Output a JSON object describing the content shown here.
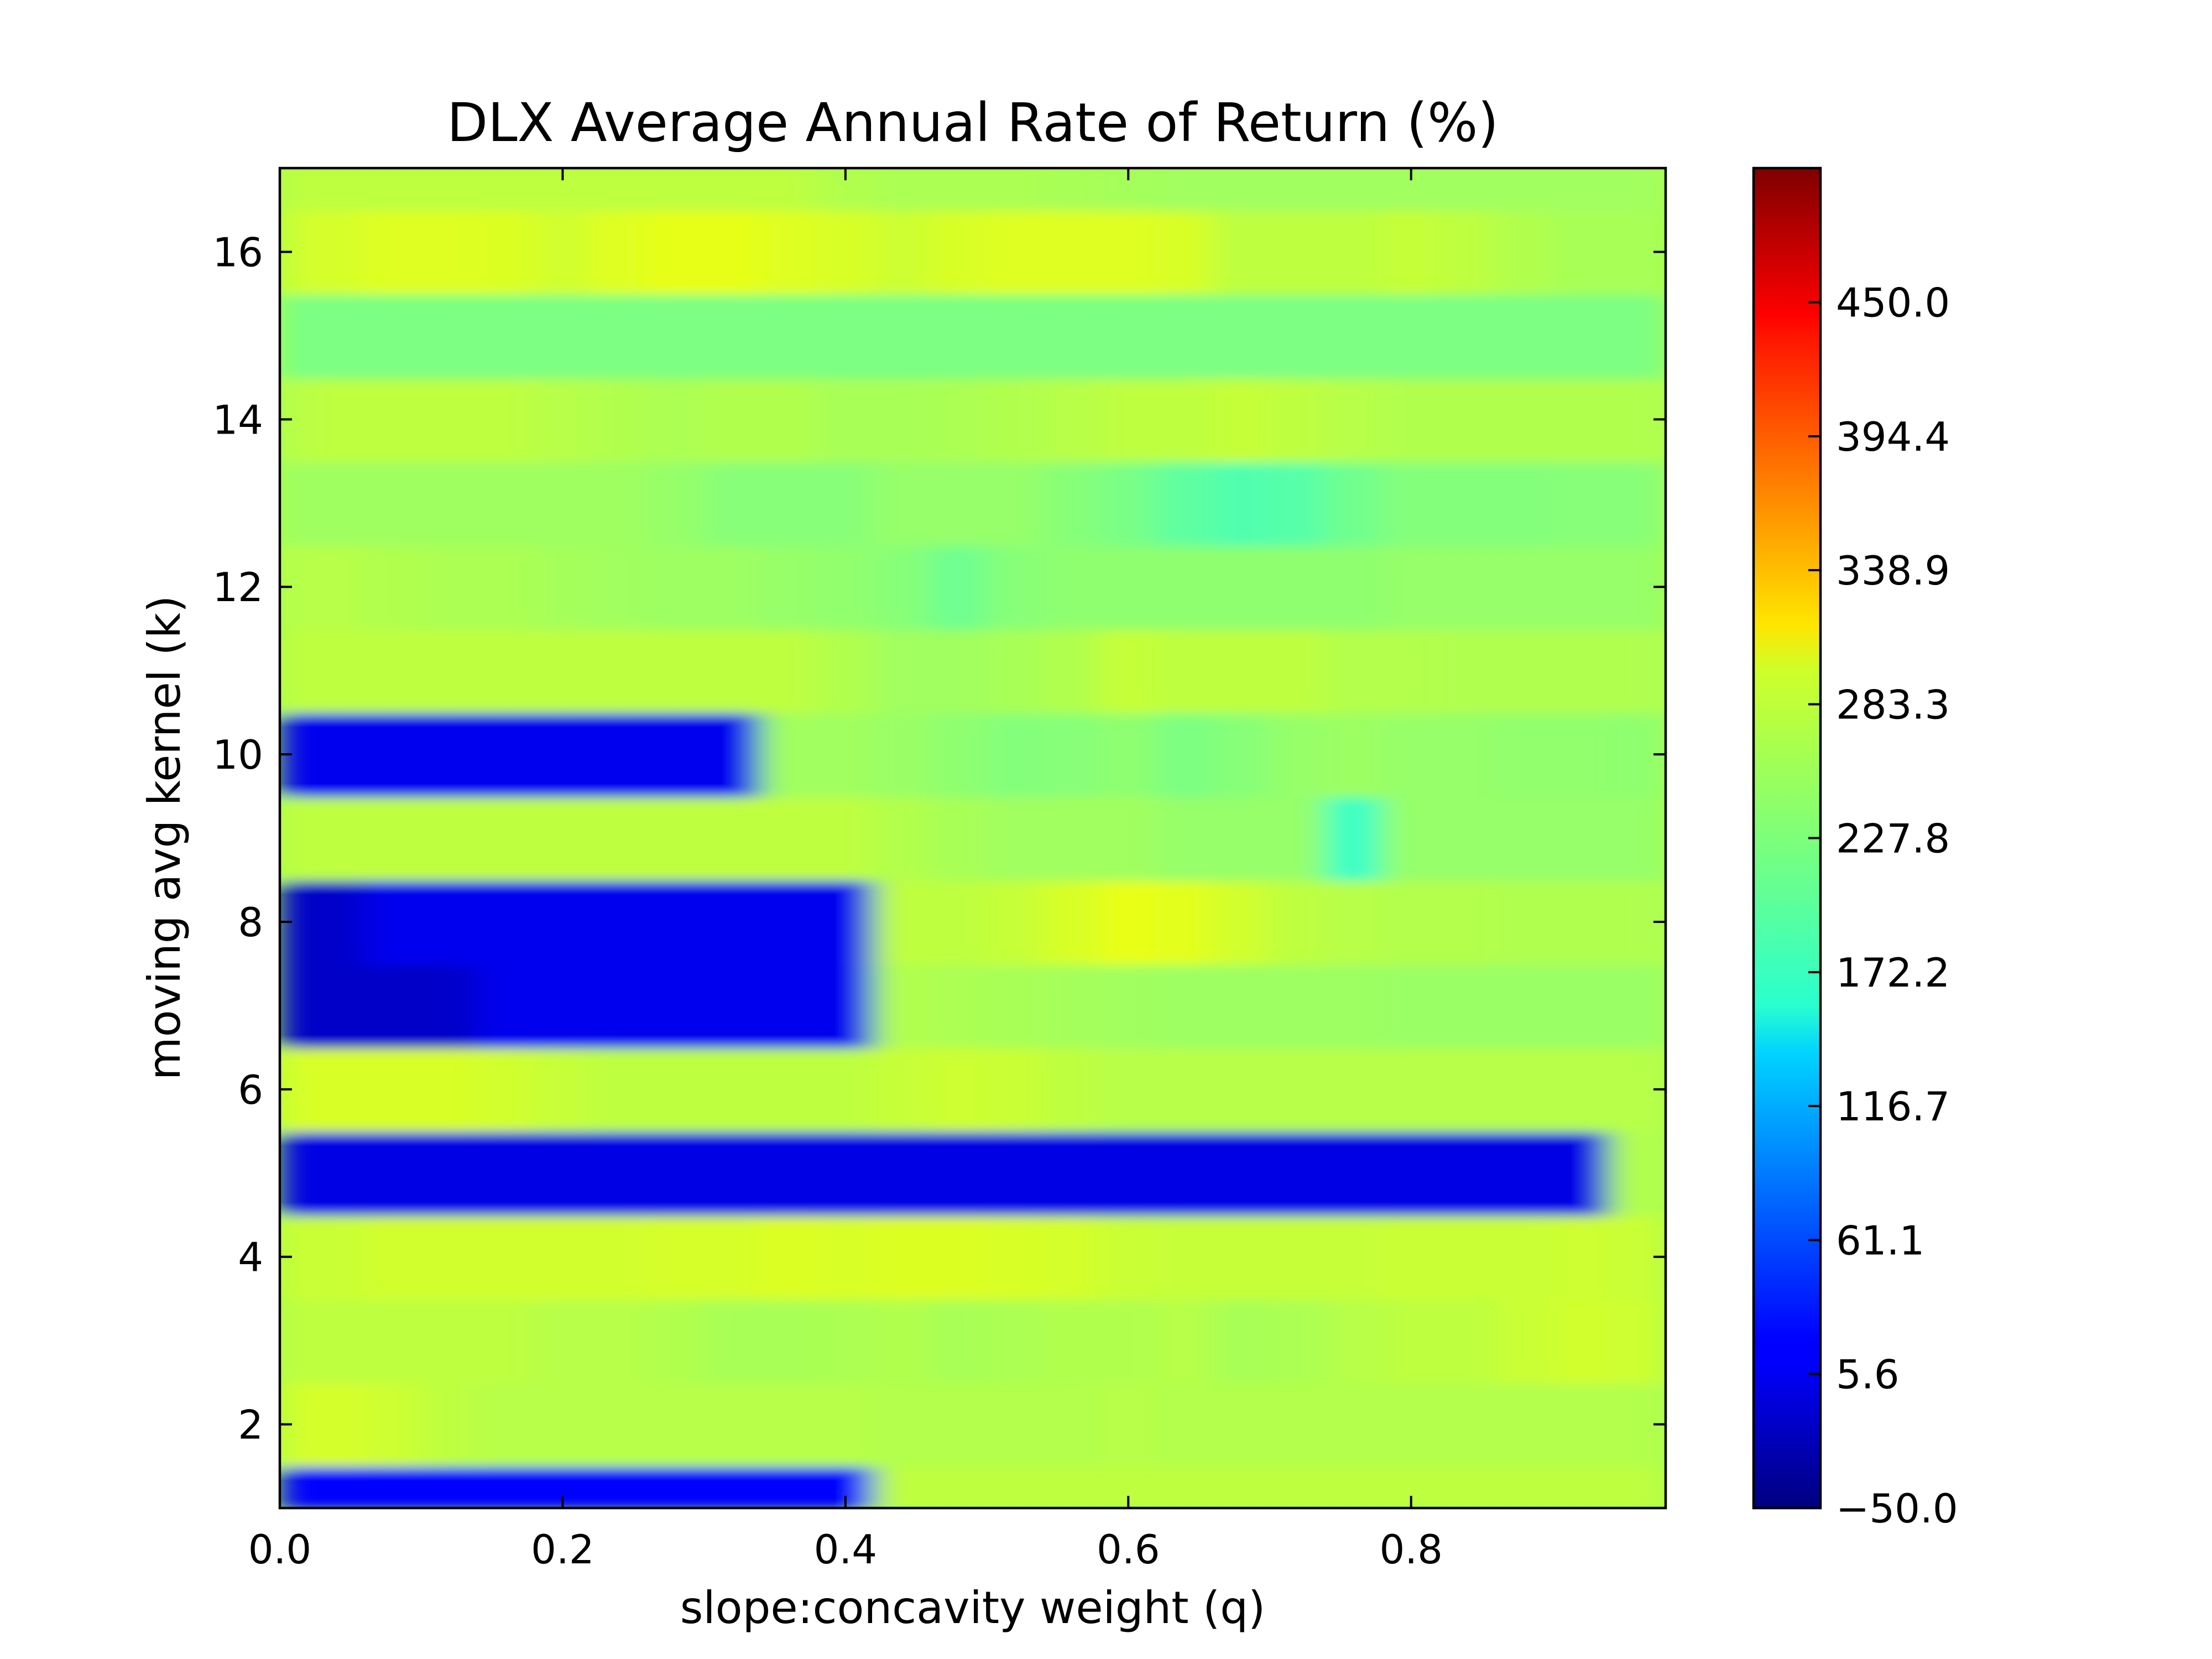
{
  "chart_data": {
    "type": "heatmap",
    "title": "DLX Average Annual Rate of Return (%)",
    "xlabel": "slope:concavity weight (q)",
    "ylabel": "moving avg kernel (k)",
    "xlim": [
      0.0,
      0.98
    ],
    "ylim": [
      1,
      17
    ],
    "x_ticks": [
      0.0,
      0.2,
      0.4,
      0.6,
      0.8
    ],
    "x_tick_labels": [
      "0.0",
      "0.2",
      "0.4",
      "0.6",
      "0.8"
    ],
    "y_ticks": [
      2,
      4,
      6,
      8,
      10,
      12,
      14,
      16
    ],
    "y_tick_labels": [
      "2",
      "4",
      "6",
      "8",
      "10",
      "12",
      "14",
      "16"
    ],
    "grid": false,
    "colormap": "jet",
    "colorbar": {
      "vmin": -50.0,
      "vmax": 505.6,
      "ticks": [
        -50.0,
        5.6,
        61.1,
        116.7,
        172.2,
        227.8,
        283.3,
        338.9,
        394.4,
        450.0
      ],
      "tick_labels": [
        "−50.0",
        "5.6",
        "61.1",
        "116.7",
        "172.2",
        "227.8",
        "283.3",
        "338.9",
        "394.4",
        "450.0"
      ]
    },
    "x": [
      0.0,
      0.04,
      0.08,
      0.12,
      0.16,
      0.2,
      0.24,
      0.28,
      0.32,
      0.36,
      0.4,
      0.44,
      0.48,
      0.52,
      0.56,
      0.6,
      0.64,
      0.68,
      0.72,
      0.76,
      0.8,
      0.84,
      0.88,
      0.92,
      0.96,
      0.98
    ],
    "y": [
      1,
      2,
      3,
      4,
      5,
      6,
      7,
      8,
      9,
      10,
      11,
      12,
      13,
      14,
      15,
      16,
      17
    ],
    "rows": [
      {
        "k": 1,
        "values": [
          20,
          20,
          20,
          20,
          20,
          20,
          20,
          20,
          20,
          20,
          20,
          262,
          262,
          262,
          262,
          262,
          262,
          262,
          262,
          262,
          262,
          262,
          262,
          262,
          262,
          262
        ]
      },
      {
        "k": 2,
        "values": [
          272,
          275,
          270,
          262,
          258,
          258,
          258,
          258,
          258,
          258,
          258,
          256,
          256,
          256,
          256,
          258,
          256,
          256,
          256,
          256,
          256,
          256,
          256,
          256,
          256,
          256
        ]
      },
      {
        "k": 3,
        "values": [
          262,
          262,
          262,
          262,
          262,
          258,
          258,
          255,
          250,
          250,
          252,
          255,
          250,
          252,
          255,
          255,
          258,
          250,
          252,
          258,
          262,
          262,
          268,
          272,
          270,
          270
        ]
      },
      {
        "k": 4,
        "values": [
          268,
          268,
          272,
          272,
          272,
          272,
          272,
          275,
          275,
          278,
          276,
          278,
          278,
          276,
          274,
          268,
          266,
          266,
          266,
          266,
          268,
          268,
          268,
          270,
          268,
          268
        ]
      },
      {
        "k": 5,
        "values": [
          5,
          5,
          5,
          5,
          5,
          5,
          5,
          5,
          5,
          5,
          5,
          5,
          5,
          5,
          5,
          5,
          5,
          5,
          5,
          5,
          5,
          5,
          5,
          5,
          255,
          255
        ]
      },
      {
        "k": 6,
        "values": [
          276,
          276,
          276,
          276,
          272,
          266,
          262,
          262,
          262,
          262,
          262,
          266,
          270,
          268,
          262,
          258,
          258,
          258,
          258,
          258,
          258,
          258,
          258,
          258,
          258,
          258
        ]
      },
      {
        "k": 7,
        "values": [
          -10,
          -10,
          -10,
          -10,
          10,
          10,
          10,
          10,
          10,
          10,
          10,
          255,
          252,
          250,
          248,
          246,
          244,
          244,
          244,
          244,
          242,
          242,
          242,
          242,
          242,
          242
        ]
      },
      {
        "k": 8,
        "values": [
          -10,
          -10,
          10,
          10,
          10,
          10,
          10,
          10,
          10,
          10,
          10,
          262,
          262,
          266,
          276,
          285,
          282,
          272,
          262,
          258,
          256,
          256,
          254,
          254,
          254,
          254
        ]
      },
      {
        "k": 9,
        "values": [
          262,
          262,
          262,
          262,
          262,
          262,
          262,
          262,
          262,
          262,
          262,
          256,
          250,
          246,
          246,
          246,
          240,
          240,
          240,
          190,
          240,
          240,
          240,
          240,
          240,
          240
        ]
      },
      {
        "k": 10,
        "values": [
          10,
          10,
          10,
          10,
          10,
          10,
          10,
          10,
          10,
          246,
          246,
          242,
          236,
          230,
          232,
          236,
          226,
          232,
          240,
          244,
          240,
          240,
          238,
          238,
          236,
          236
        ]
      },
      {
        "k": 11,
        "values": [
          262,
          262,
          262,
          262,
          262,
          262,
          262,
          262,
          262,
          262,
          255,
          246,
          246,
          250,
          255,
          266,
          262,
          262,
          262,
          256,
          256,
          254,
          254,
          254,
          254,
          254
        ]
      },
      {
        "k": 12,
        "values": [
          258,
          258,
          255,
          252,
          252,
          248,
          246,
          244,
          244,
          240,
          238,
          232,
          218,
          232,
          236,
          236,
          236,
          236,
          236,
          236,
          240,
          240,
          240,
          240,
          240,
          240
        ]
      },
      {
        "k": 13,
        "values": [
          245,
          245,
          245,
          245,
          245,
          245,
          245,
          240,
          232,
          232,
          232,
          240,
          240,
          240,
          232,
          224,
          210,
          202,
          205,
          220,
          230,
          230,
          230,
          232,
          232,
          232
        ]
      },
      {
        "k": 14,
        "values": [
          258,
          262,
          262,
          262,
          262,
          258,
          255,
          252,
          255,
          255,
          250,
          250,
          252,
          255,
          258,
          262,
          262,
          266,
          262,
          258,
          255,
          255,
          255,
          255,
          255,
          255
        ]
      },
      {
        "k": 15,
        "values": [
          226,
          226,
          226,
          226,
          226,
          226,
          226,
          226,
          226,
          226,
          226,
          226,
          226,
          226,
          226,
          226,
          226,
          226,
          226,
          226,
          226,
          226,
          226,
          226,
          226,
          226
        ]
      },
      {
        "k": 16,
        "values": [
          270,
          275,
          280,
          280,
          278,
          272,
          280,
          284,
          284,
          280,
          276,
          270,
          276,
          280,
          280,
          280,
          276,
          262,
          262,
          262,
          266,
          262,
          255,
          250,
          250,
          250
        ]
      },
      {
        "k": 17,
        "values": [
          262,
          262,
          262,
          262,
          262,
          262,
          262,
          262,
          262,
          262,
          255,
          252,
          252,
          252,
          250,
          248,
          246,
          246,
          246,
          246,
          246,
          246,
          246,
          246,
          246,
          246
        ]
      }
    ]
  }
}
